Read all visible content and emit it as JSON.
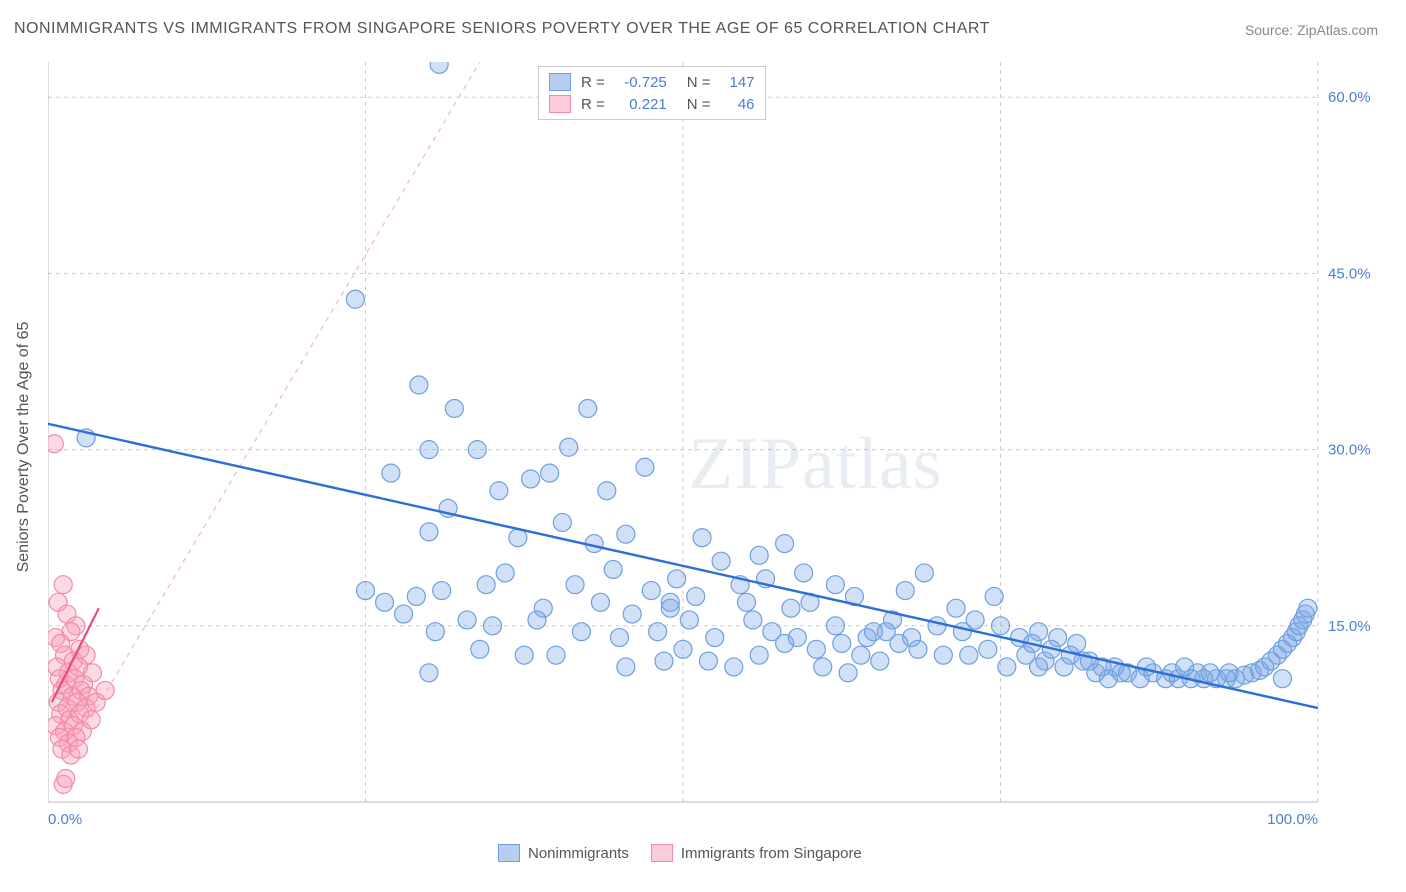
{
  "title": "NONIMMIGRANTS VS IMMIGRANTS FROM SINGAPORE SENIORS POVERTY OVER THE AGE OF 65 CORRELATION CHART",
  "source": "Source: ZipAtlas.com",
  "watermark": "ZIPatlas",
  "y_axis_label": "Seniors Poverty Over the Age of 65",
  "chart": {
    "type": "scatter",
    "background_color": "#ffffff",
    "grid_color": "#cccccc",
    "axis_color": "#bbbbbb",
    "xlim": [
      0,
      100
    ],
    "ylim": [
      0,
      63
    ],
    "x_ticks": [
      0,
      25,
      50,
      75,
      100
    ],
    "x_tick_labels_shown": {
      "left": "0.0%",
      "right": "100.0%"
    },
    "y_ticks": [
      15,
      30,
      45,
      60
    ],
    "y_tick_labels": [
      "15.0%",
      "30.0%",
      "45.0%",
      "60.0%"
    ],
    "tick_label_color": "#4a7fd6",
    "tick_label_fontsize": 15,
    "marker_radius": 9,
    "marker_stroke_width": 1.2,
    "series": [
      {
        "name": "Nonimmigrants",
        "fill": "rgba(120,165,230,0.35)",
        "stroke": "#6f9fe0",
        "R": "-0.725",
        "N": "147",
        "trend": {
          "x1": 0,
          "y1": 32.2,
          "x2": 100,
          "y2": 8.0,
          "color": "#2e6fd6",
          "dash": "none",
          "width": 2.4
        },
        "projection": {
          "x1": 3,
          "y1": 6.5,
          "x2": 34,
          "y2": 63,
          "color": "#f6b6c2",
          "dash": "5,5",
          "width": 1.2
        },
        "points": [
          [
            30.8,
            62.8
          ],
          [
            24.2,
            42.8
          ],
          [
            29.2,
            35.5
          ],
          [
            3.0,
            31.0
          ],
          [
            30.0,
            30.0
          ],
          [
            33.8,
            30.0
          ],
          [
            41.0,
            30.2
          ],
          [
            32.0,
            33.5
          ],
          [
            27.0,
            28.0
          ],
          [
            31.5,
            25.0
          ],
          [
            35.5,
            26.5
          ],
          [
            38.0,
            27.5
          ],
          [
            39.5,
            28.0
          ],
          [
            42.5,
            33.5
          ],
          [
            44.0,
            26.5
          ],
          [
            30.0,
            23.0
          ],
          [
            37.0,
            22.5
          ],
          [
            40.5,
            23.8
          ],
          [
            43.0,
            22.0
          ],
          [
            45.5,
            22.8
          ],
          [
            47.0,
            28.5
          ],
          [
            31.0,
            18.0
          ],
          [
            25.0,
            18.0
          ],
          [
            26.5,
            17.0
          ],
          [
            29.0,
            17.5
          ],
          [
            34.5,
            18.5
          ],
          [
            36.0,
            19.5
          ],
          [
            39.0,
            16.5
          ],
          [
            41.5,
            18.5
          ],
          [
            44.5,
            19.8
          ],
          [
            47.5,
            18.0
          ],
          [
            49.0,
            16.5
          ],
          [
            51.0,
            17.5
          ],
          [
            53.0,
            20.5
          ],
          [
            55.0,
            17.0
          ],
          [
            30.5,
            14.5
          ],
          [
            28.0,
            16.0
          ],
          [
            33.0,
            15.5
          ],
          [
            35.0,
            15.0
          ],
          [
            38.5,
            15.5
          ],
          [
            42.0,
            14.5
          ],
          [
            45.0,
            14.0
          ],
          [
            48.0,
            14.5
          ],
          [
            50.5,
            15.5
          ],
          [
            52.5,
            14.0
          ],
          [
            55.5,
            15.5
          ],
          [
            58.0,
            22.0
          ],
          [
            58.5,
            16.5
          ],
          [
            60.0,
            17.0
          ],
          [
            62.0,
            15.0
          ],
          [
            63.5,
            17.5
          ],
          [
            65.0,
            14.5
          ],
          [
            66.5,
            15.5
          ],
          [
            68.0,
            14.0
          ],
          [
            70.0,
            15.0
          ],
          [
            72.0,
            14.5
          ],
          [
            40.0,
            12.5
          ],
          [
            45.5,
            11.5
          ],
          [
            48.5,
            12.0
          ],
          [
            50.0,
            13.0
          ],
          [
            52.0,
            12.0
          ],
          [
            54.0,
            11.5
          ],
          [
            56.0,
            12.5
          ],
          [
            58.0,
            13.5
          ],
          [
            60.5,
            13.0
          ],
          [
            62.5,
            13.5
          ],
          [
            64.0,
            12.5
          ],
          [
            65.5,
            12.0
          ],
          [
            67.0,
            13.5
          ],
          [
            68.5,
            13.0
          ],
          [
            70.5,
            12.5
          ],
          [
            72.5,
            12.5
          ],
          [
            74.0,
            13.0
          ],
          [
            75.5,
            11.5
          ],
          [
            77.0,
            12.5
          ],
          [
            78.5,
            12.0
          ],
          [
            80.0,
            11.5
          ],
          [
            30.0,
            11.0
          ],
          [
            49.5,
            19.0
          ],
          [
            51.5,
            22.5
          ],
          [
            54.5,
            18.5
          ],
          [
            56.5,
            19.0
          ],
          [
            67.5,
            18.0
          ],
          [
            69.0,
            19.5
          ],
          [
            71.5,
            16.5
          ],
          [
            81.5,
            12.0
          ],
          [
            82.5,
            11.0
          ],
          [
            83.5,
            10.5
          ],
          [
            85.0,
            11.0
          ],
          [
            86.0,
            10.5
          ],
          [
            87.0,
            11.0
          ],
          [
            88.0,
            10.5
          ],
          [
            89.0,
            10.5
          ],
          [
            90.0,
            10.5
          ],
          [
            91.0,
            10.5
          ],
          [
            92.0,
            10.5
          ],
          [
            92.8,
            10.5
          ],
          [
            93.5,
            10.5
          ],
          [
            94.2,
            10.8
          ],
          [
            94.8,
            11.0
          ],
          [
            95.4,
            11.2
          ],
          [
            95.8,
            11.5
          ],
          [
            96.3,
            12.0
          ],
          [
            96.8,
            12.5
          ],
          [
            97.2,
            13.0
          ],
          [
            97.2,
            10.5
          ],
          [
            97.6,
            13.5
          ],
          [
            98.0,
            14.0
          ],
          [
            98.3,
            14.5
          ],
          [
            98.5,
            15.0
          ],
          [
            98.8,
            15.5
          ],
          [
            99.0,
            16.0
          ],
          [
            99.2,
            16.5
          ],
          [
            73.0,
            15.5
          ],
          [
            75.0,
            15.0
          ],
          [
            76.5,
            14.0
          ],
          [
            78.0,
            14.5
          ],
          [
            79.5,
            14.0
          ],
          [
            81.0,
            13.5
          ],
          [
            62.0,
            18.5
          ],
          [
            56.0,
            21.0
          ],
          [
            59.5,
            19.5
          ],
          [
            74.5,
            17.5
          ],
          [
            37.5,
            12.5
          ],
          [
            34.0,
            13.0
          ],
          [
            84.0,
            11.5
          ],
          [
            88.5,
            11.0
          ],
          [
            61.0,
            11.5
          ],
          [
            63.0,
            11.0
          ],
          [
            78.0,
            11.5
          ],
          [
            43.5,
            17.0
          ],
          [
            46.0,
            16.0
          ],
          [
            49.0,
            17.0
          ],
          [
            86.5,
            11.5
          ],
          [
            89.5,
            11.5
          ],
          [
            90.5,
            11.0
          ],
          [
            91.5,
            11.0
          ],
          [
            93.0,
            11.0
          ],
          [
            77.5,
            13.5
          ],
          [
            79.0,
            13.0
          ],
          [
            80.5,
            12.5
          ],
          [
            82.0,
            12.0
          ],
          [
            83.0,
            11.5
          ],
          [
            84.5,
            11.0
          ],
          [
            57.0,
            14.5
          ],
          [
            59.0,
            14.0
          ],
          [
            64.5,
            14.0
          ],
          [
            66.0,
            14.5
          ]
        ]
      },
      {
        "name": "Immigrants from Singapore",
        "fill": "rgba(250,160,185,0.4)",
        "stroke": "#f08ca8",
        "R": "0.221",
        "N": "46",
        "trend": {
          "x1": 0.3,
          "y1": 8.5,
          "x2": 4.0,
          "y2": 16.5,
          "color": "#e94b77",
          "dash": "none",
          "width": 2.2
        },
        "points": [
          [
            0.5,
            30.5
          ],
          [
            1.2,
            18.5
          ],
          [
            0.8,
            17.0
          ],
          [
            1.5,
            16.0
          ],
          [
            2.2,
            15.0
          ],
          [
            0.6,
            14.0
          ],
          [
            1.8,
            14.5
          ],
          [
            1.0,
            13.5
          ],
          [
            2.5,
            13.0
          ],
          [
            1.3,
            12.5
          ],
          [
            2.0,
            12.0
          ],
          [
            3.0,
            12.5
          ],
          [
            0.7,
            11.5
          ],
          [
            1.6,
            11.0
          ],
          [
            2.4,
            11.5
          ],
          [
            3.5,
            11.0
          ],
          [
            0.9,
            10.5
          ],
          [
            1.4,
            10.0
          ],
          [
            2.1,
            10.5
          ],
          [
            2.8,
            10.0
          ],
          [
            1.1,
            9.5
          ],
          [
            1.9,
            9.0
          ],
          [
            2.6,
            9.5
          ],
          [
            3.2,
            9.0
          ],
          [
            0.8,
            8.5
          ],
          [
            1.5,
            8.0
          ],
          [
            2.3,
            8.5
          ],
          [
            3.0,
            8.0
          ],
          [
            1.0,
            7.5
          ],
          [
            1.7,
            7.0
          ],
          [
            2.5,
            7.5
          ],
          [
            0.6,
            6.5
          ],
          [
            1.3,
            6.0
          ],
          [
            2.0,
            6.5
          ],
          [
            2.7,
            6.0
          ],
          [
            3.4,
            7.0
          ],
          [
            0.9,
            5.5
          ],
          [
            1.6,
            5.0
          ],
          [
            2.2,
            5.5
          ],
          [
            1.1,
            4.5
          ],
          [
            1.8,
            4.0
          ],
          [
            2.4,
            4.5
          ],
          [
            3.8,
            8.5
          ],
          [
            4.5,
            9.5
          ],
          [
            1.2,
            1.5
          ],
          [
            1.4,
            2.0
          ]
        ]
      }
    ]
  },
  "stats_box": {
    "rows": [
      {
        "swatch_fill": "rgba(120,165,230,0.55)",
        "swatch_stroke": "#6f9fe0",
        "r_label": "R =",
        "r_val": "-0.725",
        "n_label": "N =",
        "n_val": "147"
      },
      {
        "swatch_fill": "rgba(250,160,185,0.55)",
        "swatch_stroke": "#f08ca8",
        "r_label": "R =",
        "r_val": "0.221",
        "n_label": "N =",
        "n_val": "46"
      }
    ]
  },
  "bottom_legend": [
    {
      "swatch_fill": "rgba(120,165,230,0.55)",
      "swatch_stroke": "#6f9fe0",
      "label": "Nonimmigrants"
    },
    {
      "swatch_fill": "rgba(250,160,185,0.55)",
      "swatch_stroke": "#f08ca8",
      "label": "Immigrants from Singapore"
    }
  ]
}
